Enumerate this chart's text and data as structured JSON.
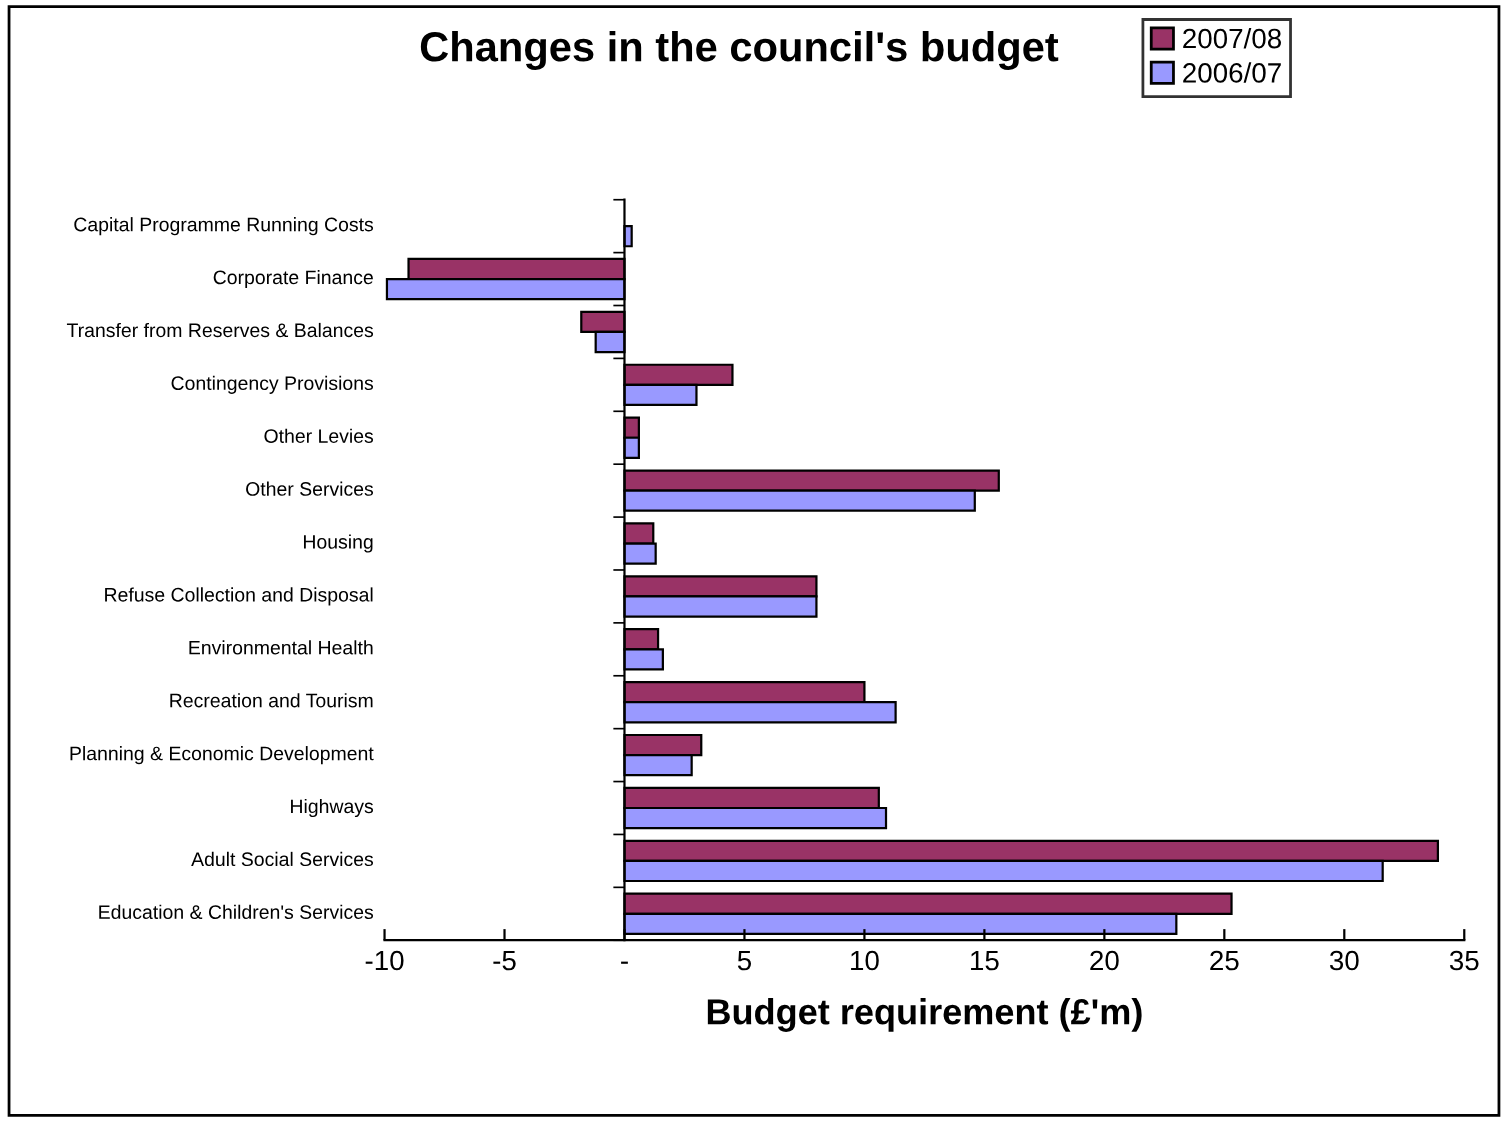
{
  "chart_data": {
    "type": "bar",
    "orientation": "horizontal",
    "title": "Changes in the council's budget",
    "xlabel": "Budget requirement (£'m)",
    "categories": [
      "Capital Programme Running Costs",
      "Corporate Finance",
      "Transfer from Reserves & Balances",
      "Contingency Provisions",
      "Other Levies",
      "Other Services",
      "Housing",
      "Refuse Collection and Disposal",
      "Environmental Health",
      "Recreation and Tourism",
      "Planning & Economic Development",
      "Highways",
      "Adult Social Services",
      "Education & Children's Services"
    ],
    "series": [
      {
        "name": "2007/08",
        "color": "#993366",
        "values": [
          null,
          -9.0,
          -1.8,
          4.5,
          0.6,
          15.6,
          1.2,
          8.0,
          1.4,
          10.0,
          3.2,
          10.6,
          33.9,
          25.3
        ]
      },
      {
        "name": "2006/07",
        "color": "#9999ff",
        "values": [
          0.3,
          -9.9,
          -1.2,
          3.0,
          0.6,
          14.6,
          1.3,
          8.0,
          1.6,
          11.3,
          2.8,
          10.9,
          31.6,
          23.0
        ]
      }
    ],
    "xlim": [
      -10,
      35
    ],
    "xticks": [
      -10,
      -5,
      {
        "value": 0,
        "label": "-"
      },
      5,
      10,
      15,
      20,
      25,
      30,
      35
    ],
    "legend": "top right"
  }
}
